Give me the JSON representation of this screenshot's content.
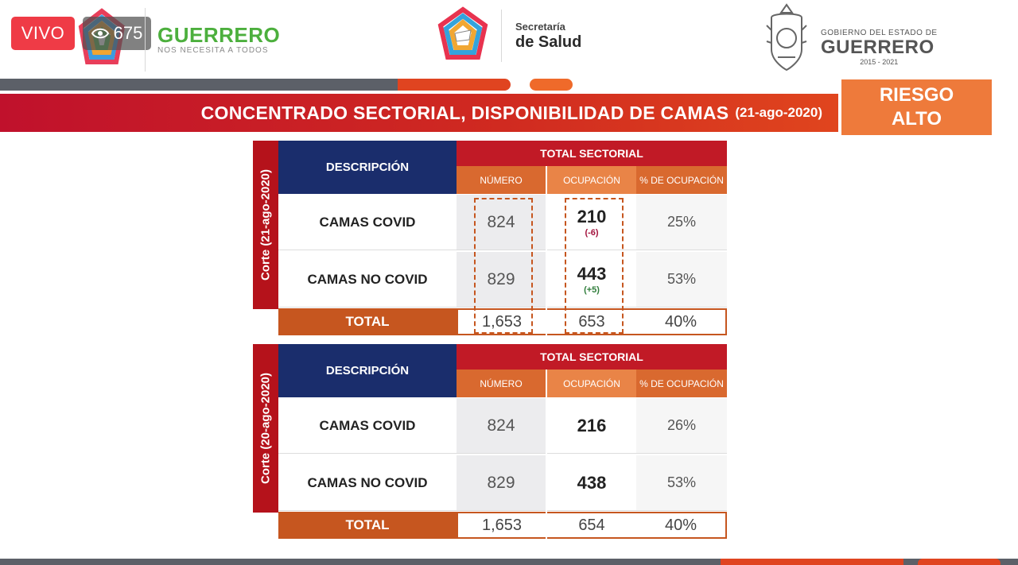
{
  "stream": {
    "live_label": "VIVO",
    "viewer_count": "675"
  },
  "logos": {
    "guerrero_title": "GUERRERO",
    "guerrero_slogan": "NOS NECESITA A TODOS",
    "salud_line1": "Secretaría",
    "salud_line2": "de Salud",
    "gobierno_line1": "GOBIERNO DEL ESTADO DE",
    "gobierno_line2": "GUERRERO",
    "gobierno_years": "2015 - 2021"
  },
  "header": {
    "title": "CONCENTRADO SECTORIAL, DISPONIBILIDAD DE CAMAS",
    "date": "(21-ago-2020)",
    "risk_line1": "RIESGO",
    "risk_line2": "ALTO"
  },
  "colors": {
    "navy": "#1a2d6c",
    "red": "#c11a26",
    "orange": "#d9692f",
    "risk": "#ee7a3b"
  },
  "tables": [
    {
      "side_label": "Corte (21-ago-2020)",
      "desc_header": "DESCRIPCIÓN",
      "group_header": "TOTAL SECTORIAL",
      "col_numero": "NÚMERO",
      "col_ocupacion": "OCUPACIÓN",
      "col_pct": "% DE OCUPACIÓN",
      "rows": [
        {
          "label": "CAMAS COVID",
          "numero": "824",
          "ocupacion": "210",
          "delta": "(-6)",
          "pct": "25%"
        },
        {
          "label": "CAMAS NO COVID",
          "numero": "829",
          "ocupacion": "443",
          "delta": "(+5)",
          "pct": "53%"
        }
      ],
      "total": {
        "label": "TOTAL",
        "numero": "1,653",
        "ocupacion": "653",
        "pct": "40%"
      }
    },
    {
      "side_label": "Corte (20-ago-2020)",
      "desc_header": "DESCRIPCIÓN",
      "group_header": "TOTAL SECTORIAL",
      "col_numero": "NÚMERO",
      "col_ocupacion": "OCUPACIÓN",
      "col_pct": "% DE OCUPACIÓN",
      "rows": [
        {
          "label": "CAMAS COVID",
          "numero": "824",
          "ocupacion": "216",
          "pct": "26%"
        },
        {
          "label": "CAMAS NO COVID",
          "numero": "829",
          "ocupacion": "438",
          "pct": "53%"
        }
      ],
      "total": {
        "label": "TOTAL",
        "numero": "1,653",
        "ocupacion": "654",
        "pct": "40%"
      }
    }
  ]
}
